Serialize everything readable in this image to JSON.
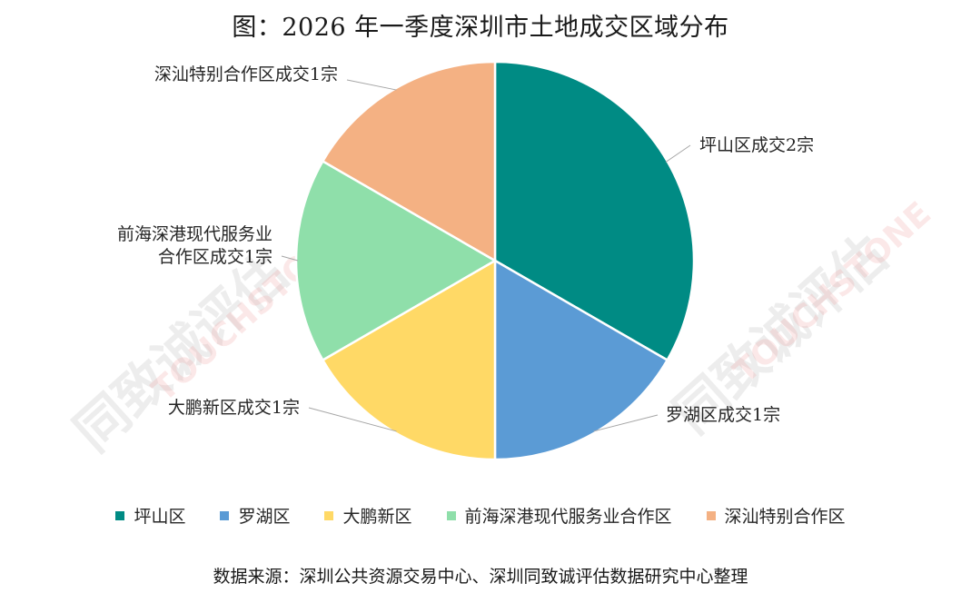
{
  "title": "图：2026 年一季度深圳市土地成交区域分布",
  "source": "数据来源：深圳公共资源交易中心、深圳同致诚评估数据研究中心整理",
  "watermark": {
    "cn": "同致诚评估",
    "en": "TOUCHSTONE"
  },
  "chart_data": {
    "type": "pie",
    "title": "图：2026 年一季度深圳市土地成交区域分布",
    "categories": [
      "坪山区",
      "罗湖区",
      "大鹏新区",
      "前海深港现代服务业合作区",
      "深汕特别合作区"
    ],
    "values": [
      2,
      1,
      1,
      1,
      1
    ],
    "unit": "宗",
    "colors": [
      "#008b84",
      "#5b9bd5",
      "#ffd966",
      "#8fdfaa",
      "#f4b183"
    ],
    "labels": [
      [
        "坪山区成交2宗"
      ],
      [
        "罗湖区成交1宗"
      ],
      [
        "大鹏新区成交1宗"
      ],
      [
        "前海深港现代服务业",
        "合作区成交1宗"
      ],
      [
        "深汕特别合作区成交1宗"
      ]
    ],
    "legend_position": "bottom"
  }
}
